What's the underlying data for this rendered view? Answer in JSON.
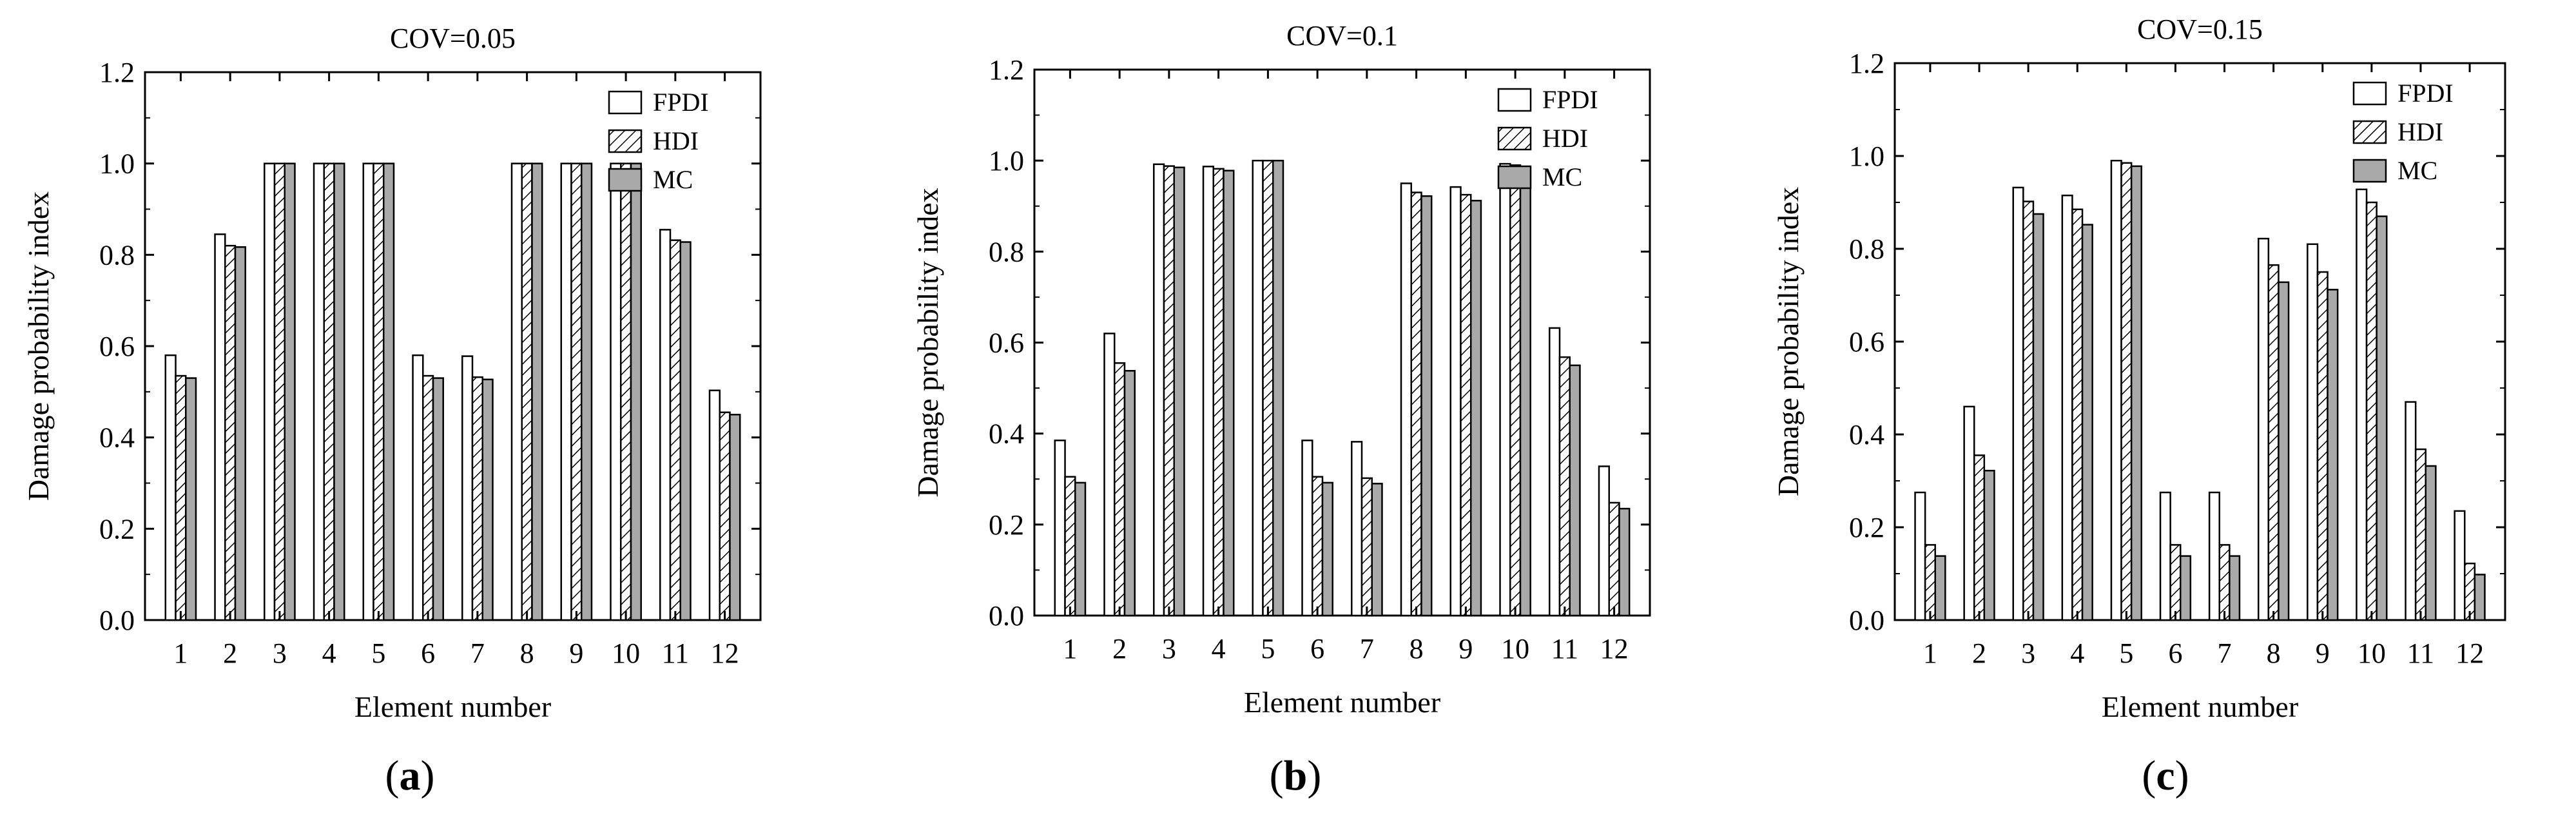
{
  "chart_data": [
    {
      "type": "bar",
      "panel": "(a)",
      "panel_letter": "a",
      "title": "COV=0.05",
      "xlabel": "Element number",
      "ylabel": "Damage probability index",
      "ylim": [
        0,
        1.2
      ],
      "yticks": [
        "0.0",
        "0.2",
        "0.4",
        "0.6",
        "0.8",
        "1.0",
        "1.2"
      ],
      "categories": [
        "1",
        "2",
        "3",
        "4",
        "5",
        "6",
        "7",
        "8",
        "9",
        "10",
        "11",
        "12"
      ],
      "legend_position": "top-right",
      "series": [
        {
          "name": "FPDI",
          "values": [
            0.58,
            0.845,
            1.0,
            1.0,
            1.0,
            0.58,
            0.578,
            1.0,
            1.0,
            1.0,
            0.855,
            0.503
          ]
        },
        {
          "name": "HDI",
          "values": [
            0.535,
            0.82,
            1.0,
            1.0,
            1.0,
            0.535,
            0.532,
            1.0,
            1.0,
            1.0,
            0.832,
            0.455
          ]
        },
        {
          "name": "MC",
          "values": [
            0.53,
            0.817,
            1.0,
            1.0,
            1.0,
            0.53,
            0.527,
            1.0,
            1.0,
            1.0,
            0.828,
            0.45
          ]
        }
      ]
    },
    {
      "type": "bar",
      "panel": "(b)",
      "panel_letter": "b",
      "title": "COV=0.1",
      "xlabel": "Element number",
      "ylabel": "Damage probability index",
      "ylim": [
        0,
        1.2
      ],
      "yticks": [
        "0.0",
        "0.2",
        "0.4",
        "0.6",
        "0.8",
        "1.0",
        "1.2"
      ],
      "categories": [
        "1",
        "2",
        "3",
        "4",
        "5",
        "6",
        "7",
        "8",
        "9",
        "10",
        "11",
        "12"
      ],
      "legend_position": "top-right",
      "series": [
        {
          "name": "FPDI",
          "values": [
            0.385,
            0.62,
            0.992,
            0.987,
            1.0,
            0.385,
            0.382,
            0.95,
            0.942,
            0.993,
            0.632,
            0.328
          ]
        },
        {
          "name": "HDI",
          "values": [
            0.305,
            0.555,
            0.988,
            0.982,
            1.0,
            0.305,
            0.302,
            0.93,
            0.925,
            0.99,
            0.568,
            0.248
          ]
        },
        {
          "name": "MC",
          "values": [
            0.292,
            0.538,
            0.985,
            0.978,
            1.0,
            0.292,
            0.29,
            0.922,
            0.912,
            0.987,
            0.55,
            0.235
          ]
        }
      ]
    },
    {
      "type": "bar",
      "panel": "(c)",
      "panel_letter": "c",
      "title": "COV=0.15",
      "xlabel": "Element number",
      "ylabel": "Damage probability index",
      "ylim": [
        0,
        1.2
      ],
      "yticks": [
        "0.0",
        "0.2",
        "0.4",
        "0.6",
        "0.8",
        "1.0",
        "1.2"
      ],
      "categories": [
        "1",
        "2",
        "3",
        "4",
        "5",
        "6",
        "7",
        "8",
        "9",
        "10",
        "11",
        "12"
      ],
      "legend_position": "top-right",
      "series": [
        {
          "name": "FPDI",
          "values": [
            0.275,
            0.46,
            0.932,
            0.915,
            0.99,
            0.275,
            0.275,
            0.822,
            0.81,
            0.928,
            0.47,
            0.235
          ]
        },
        {
          "name": "HDI",
          "values": [
            0.162,
            0.355,
            0.902,
            0.885,
            0.985,
            0.162,
            0.162,
            0.765,
            0.75,
            0.9,
            0.368,
            0.122
          ]
        },
        {
          "name": "MC",
          "values": [
            0.138,
            0.322,
            0.875,
            0.852,
            0.978,
            0.138,
            0.138,
            0.728,
            0.712,
            0.87,
            0.332,
            0.098
          ]
        }
      ]
    }
  ]
}
